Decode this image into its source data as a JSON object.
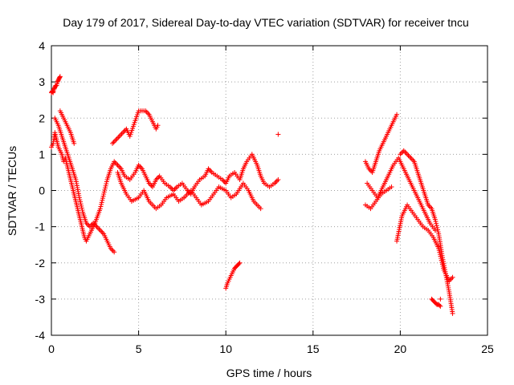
{
  "chart_data": {
    "type": "scatter",
    "title": "Day 179 of 2017, Sidereal Day-to-day VTEC variation (SDTVAR) for receiver tncu",
    "xlabel": "GPS time / hours",
    "ylabel": "SDTVAR / TECUs",
    "xlim": [
      0,
      25
    ],
    "ylim": [
      -4,
      4
    ],
    "xticks": [
      "0",
      "5",
      "10",
      "15",
      "20",
      "25"
    ],
    "yticks": [
      "-4",
      "-3",
      "-2",
      "-1",
      "0",
      "1",
      "2",
      "3",
      "4"
    ],
    "grid": true,
    "marker": "plus",
    "color": "#ff0000",
    "series": [
      {
        "name": "main-top",
        "x": [
          0,
          0.1,
          0.2,
          0.3,
          0.4,
          0.5,
          0.6,
          0.7,
          0.8,
          0.9,
          1.0,
          1.1,
          1.2,
          1.3,
          1.4,
          1.5,
          1.6,
          1.7,
          1.8,
          1.9,
          2.0,
          2.2,
          2.5,
          2.8,
          3.0,
          3.2,
          3.4,
          3.6,
          3.8,
          4.0,
          4.2,
          4.5,
          4.8,
          5.0,
          5.2,
          5.4,
          5.6,
          5.8,
          6.0,
          6.2,
          6.5,
          6.8,
          7.0,
          7.2,
          7.5,
          7.8,
          8.0,
          8.2,
          8.5,
          8.8,
          9.0,
          9.2,
          9.5,
          9.8,
          10.0,
          10.2,
          10.5,
          10.8,
          11.0,
          11.2,
          11.5,
          11.8,
          12.0,
          12.2,
          12.5,
          12.8,
          13.0
        ],
        "y": [
          1.2,
          1.3,
          1.6,
          1.4,
          1.2,
          1.1,
          1.0,
          0.8,
          0.9,
          0.7,
          0.5,
          0.3,
          0.1,
          -0.1,
          -0.3,
          -0.5,
          -0.7,
          -0.9,
          -1.1,
          -1.3,
          -1.4,
          -1.2,
          -0.9,
          -0.5,
          -0.1,
          0.3,
          0.6,
          0.8,
          0.7,
          0.6,
          0.4,
          0.3,
          0.5,
          0.7,
          0.6,
          0.4,
          0.2,
          0.1,
          0.3,
          0.4,
          0.2,
          0.1,
          0.0,
          0.1,
          0.2,
          0.0,
          -0.1,
          0.1,
          0.3,
          0.4,
          0.6,
          0.5,
          0.4,
          0.3,
          0.2,
          0.4,
          0.5,
          0.3,
          0.6,
          0.8,
          1.0,
          0.7,
          0.4,
          0.2,
          0.1,
          0.2,
          0.3
        ]
      },
      {
        "name": "main-lower",
        "x": [
          0.2,
          0.4,
          0.6,
          0.8,
          1.0,
          1.2,
          1.4,
          1.6,
          1.8,
          2.0,
          2.2,
          2.4,
          2.6,
          2.8,
          3.0,
          3.2,
          3.4,
          3.6,
          3.8,
          4.0,
          4.3,
          4.6,
          5.0,
          5.3,
          5.6,
          6.0,
          6.3,
          6.6,
          7.0,
          7.3,
          7.6,
          8.0,
          8.3,
          8.6,
          9.0,
          9.3,
          9.6,
          10.0,
          10.3,
          10.6,
          11.0,
          11.3,
          11.6,
          12.0
        ],
        "y": [
          2.0,
          1.8,
          1.5,
          1.2,
          0.9,
          0.6,
          0.3,
          -0.2,
          -0.6,
          -0.9,
          -1.0,
          -0.9,
          -1.0,
          -1.1,
          -1.2,
          -1.4,
          -1.6,
          -1.7,
          0.5,
          0.2,
          -0.1,
          -0.3,
          -0.2,
          0.0,
          -0.3,
          -0.5,
          -0.4,
          -0.2,
          -0.1,
          -0.3,
          -0.2,
          0.0,
          -0.2,
          -0.4,
          -0.3,
          -0.1,
          0.1,
          0.0,
          -0.2,
          -0.1,
          0.2,
          0.0,
          -0.3,
          -0.5
        ]
      },
      {
        "name": "early-peak",
        "x": [
          0.0,
          0.05,
          0.1,
          0.15,
          0.2,
          0.25,
          0.3,
          0.35,
          0.4,
          0.45,
          0.5
        ],
        "y": [
          2.7,
          2.75,
          2.7,
          2.8,
          2.85,
          2.9,
          2.9,
          3.0,
          3.05,
          3.1,
          3.15
        ]
      },
      {
        "name": "mid-upper",
        "x": [
          0.5,
          0.7,
          0.9,
          1.1,
          1.3,
          3.5,
          3.7,
          3.9,
          4.1,
          4.3,
          4.5,
          5.0,
          5.2,
          5.4,
          5.6,
          5.8,
          6.0,
          6.1,
          13.0
        ],
        "y": [
          2.2,
          2.0,
          1.8,
          1.6,
          1.3,
          1.3,
          1.4,
          1.5,
          1.6,
          1.7,
          1.5,
          2.2,
          2.2,
          2.2,
          2.1,
          1.9,
          1.7,
          1.8,
          1.55
        ]
      },
      {
        "name": "dip-10h",
        "x": [
          10.0,
          10.1,
          10.2,
          10.3,
          10.4,
          10.5,
          10.6,
          10.7,
          10.8
        ],
        "y": [
          -2.7,
          -2.55,
          -2.45,
          -2.35,
          -2.25,
          -2.15,
          -2.1,
          -2.05,
          -2.0
        ]
      },
      {
        "name": "late-upper",
        "x": [
          18.0,
          18.2,
          18.4,
          18.6,
          18.8,
          19.0,
          19.2,
          19.4,
          19.6,
          19.8,
          20.0,
          20.2,
          20.4,
          20.6,
          20.8,
          21.0,
          21.2,
          21.4,
          21.6,
          21.8,
          22.0,
          22.2,
          22.4,
          22.6,
          22.8,
          23.0
        ],
        "y": [
          0.8,
          0.6,
          0.5,
          0.8,
          1.1,
          1.3,
          1.5,
          1.7,
          1.9,
          2.1,
          1.0,
          1.1,
          1.0,
          0.9,
          0.8,
          0.5,
          0.2,
          -0.1,
          -0.4,
          -0.5,
          -0.8,
          -1.2,
          -1.8,
          -2.3,
          -2.8,
          -3.4
        ]
      },
      {
        "name": "late-lower",
        "x": [
          18.0,
          18.3,
          18.6,
          18.9,
          19.2,
          19.5,
          19.8,
          20.1,
          20.4,
          20.7,
          21.0,
          21.3,
          21.6,
          21.9,
          22.2,
          22.5,
          22.8,
          23.0
        ],
        "y": [
          -0.4,
          -0.5,
          -0.3,
          -0.1,
          0.0,
          0.1,
          -1.4,
          -0.7,
          -0.4,
          -0.6,
          -0.8,
          -1.0,
          -1.1,
          -1.3,
          -1.6,
          -2.2,
          -2.5,
          -2.4
        ]
      },
      {
        "name": "late-mid",
        "x": [
          18.1,
          18.4,
          18.7,
          19.0,
          19.3,
          19.6,
          19.9,
          20.2,
          20.5,
          20.8,
          21.1,
          21.4,
          21.7,
          22.0,
          22.3
        ],
        "y": [
          0.2,
          0.0,
          -0.2,
          0.1,
          0.4,
          0.7,
          0.9,
          0.6,
          0.3,
          0.0,
          -0.3,
          -0.6,
          -0.9,
          -1.1,
          -3.0
        ]
      },
      {
        "name": "late-tail",
        "x": [
          21.8,
          21.9,
          22.0,
          22.1,
          22.2,
          22.3
        ],
        "y": [
          -3.0,
          -3.05,
          -3.1,
          -3.15,
          -3.15,
          -3.2
        ]
      }
    ]
  }
}
